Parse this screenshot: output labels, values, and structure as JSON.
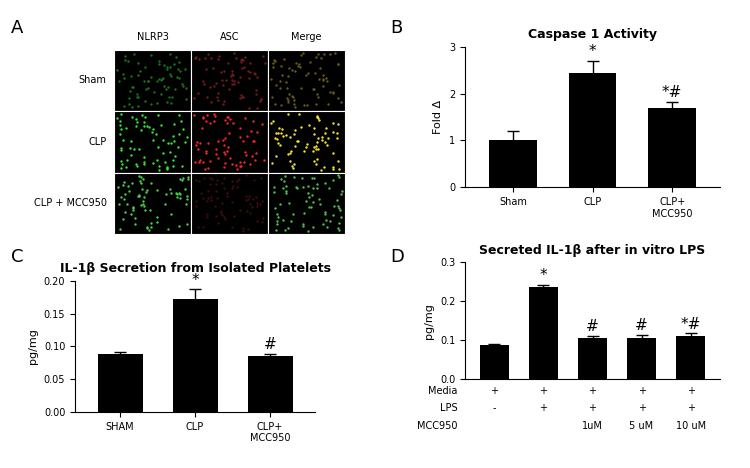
{
  "image_panel": {
    "annotations": [
      "A"
    ],
    "columns": [
      "NLRP3",
      "ASC",
      "Merge"
    ],
    "rows": [
      "Sham",
      "CLP",
      "CLP + MCC950"
    ]
  },
  "chart_data": [
    {
      "type": "bar",
      "annotations": [
        "B"
      ],
      "title": "Caspase 1 Activity",
      "y_label": "Fold Δ",
      "categories": [
        "Sham",
        "CLP",
        "CLP+\nMCC950"
      ],
      "values": [
        1.0,
        2.43,
        1.7
      ],
      "errors": [
        0.2,
        0.27,
        0.13
      ],
      "marks": [
        null,
        "*",
        "*#"
      ],
      "color": "#000000",
      "ylim": [
        0,
        3
      ],
      "yticks": [
        0,
        1,
        2,
        3
      ]
    },
    {
      "type": "bar",
      "annotations": [
        "C"
      ],
      "title": "IL-1β Secretion from Isolated Platelets",
      "y_label": "pg/mg",
      "categories": [
        "SHAM",
        "CLP",
        "CLP+\nMCC950"
      ],
      "values": [
        0.089,
        0.172,
        0.085
      ],
      "errors": [
        0.002,
        0.015,
        0.004
      ],
      "marks": [
        null,
        "*",
        "#"
      ],
      "color": "#000000",
      "ylim": [
        0,
        0.2
      ],
      "yticks": [
        {
          "value": 0,
          "label": "0.00"
        },
        {
          "value": 0.05,
          "label": "0.05"
        },
        {
          "value": 0.1,
          "label": "0.10"
        },
        {
          "value": 0.15,
          "label": "0.15"
        },
        {
          "value": 0.2,
          "label": "0.20"
        }
      ]
    },
    {
      "type": "bar",
      "annotations": [
        "D"
      ],
      "title": "Secreted IL-1β after in vitro LPS",
      "y_label": "pg/mg",
      "categories": [
        null,
        null,
        null,
        null,
        null
      ],
      "values": [
        0.088,
        0.236,
        0.105,
        0.106,
        0.111
      ],
      "errors": [
        0.002,
        0.006,
        0.006,
        0.008,
        0.006
      ],
      "marks": [
        null,
        "*",
        "#",
        "#",
        "*#"
      ],
      "color": "#000000",
      "condition_table": [
        {
          "name": "Media",
          "values": [
            "+",
            "+",
            "+",
            "+",
            "+"
          ]
        },
        {
          "name": "LPS",
          "values": [
            "-",
            "+",
            "+",
            "+",
            "+"
          ]
        },
        {
          "name": "MCC950",
          "values": [
            null,
            null,
            "1uM",
            "5 uM",
            "10 uM"
          ]
        }
      ],
      "ylim": [
        0,
        0.3
      ],
      "yticks": [
        {
          "value": 0,
          "label": "0.0"
        },
        0.1,
        0.2,
        0.3
      ]
    }
  ]
}
